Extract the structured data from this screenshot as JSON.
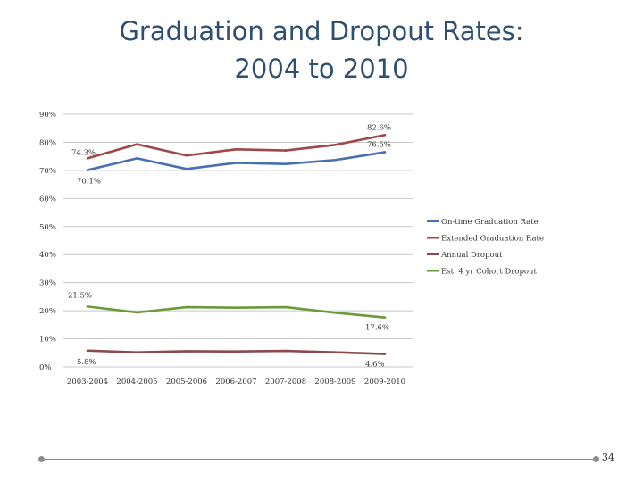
{
  "slide": {
    "title_line1": "Graduation and Dropout Rates:",
    "title_line2": "2004 to 2010",
    "page_number": "34"
  },
  "chart_data": {
    "type": "line",
    "title": "",
    "xlabel": "",
    "ylabel": "",
    "categories": [
      "2003-2004",
      "2004-2005",
      "2005-2006",
      "2006-2007",
      "2007-2008",
      "2008-2009",
      "2009-2010"
    ],
    "ylim": [
      0,
      90
    ],
    "yticks": [
      0,
      10,
      20,
      30,
      40,
      50,
      60,
      70,
      80,
      90
    ],
    "ytick_labels": [
      "0%",
      "10%",
      "20%",
      "30%",
      "40%",
      "50%",
      "60%",
      "70%",
      "80%",
      "90%"
    ],
    "grid": "horizontal",
    "legend_position": "right",
    "series": [
      {
        "name": "On-time Graduation Rate",
        "color": "#4a6fb0",
        "values": [
          70.1,
          74.3,
          70.5,
          72.7,
          72.3,
          73.7,
          76.5
        ]
      },
      {
        "name": "Extended Graduation Rate",
        "color": "#a0474b",
        "values": [
          74.3,
          79.3,
          75.3,
          77.5,
          77.1,
          79.1,
          82.6
        ]
      },
      {
        "name": "Annual Dropout",
        "color": "#8b4a4e",
        "values": [
          5.8,
          5.2,
          5.6,
          5.5,
          5.7,
          5.2,
          4.6
        ]
      },
      {
        "name": "Est. 4 yr Cohort Dropout",
        "color": "#6a9a3a",
        "values": [
          21.5,
          19.4,
          21.3,
          21.1,
          21.3,
          19.3,
          17.6
        ]
      }
    ],
    "annotations": [
      {
        "text": "70.1%",
        "series": 0,
        "index": 0,
        "pos": "below"
      },
      {
        "text": "76.5%",
        "series": 0,
        "index": 6,
        "pos": "right"
      },
      {
        "text": "74.3%",
        "series": 1,
        "index": 0,
        "pos": "left"
      },
      {
        "text": "82.6%",
        "series": 1,
        "index": 6,
        "pos": "right"
      },
      {
        "text": "5.8%",
        "series": 2,
        "index": 0,
        "pos": "below"
      },
      {
        "text": "4.6%",
        "series": 2,
        "index": 6,
        "pos": "below"
      },
      {
        "text": "21.5%",
        "series": 3,
        "index": 0,
        "pos": "above"
      },
      {
        "text": "17.6%",
        "series": 3,
        "index": 6,
        "pos": "below"
      }
    ]
  }
}
